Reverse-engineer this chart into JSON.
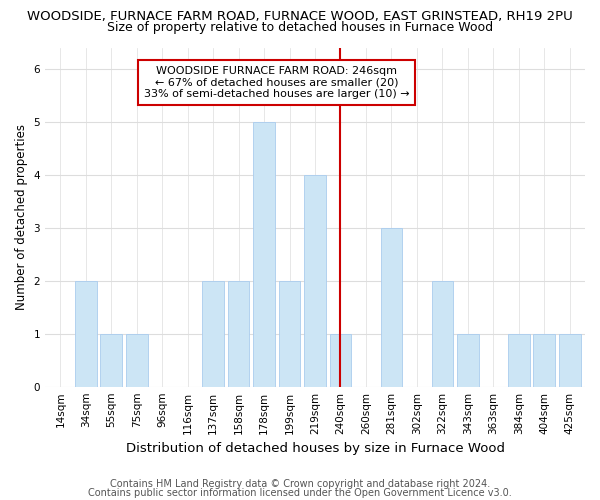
{
  "title": "WOODSIDE, FURNACE FARM ROAD, FURNACE WOOD, EAST GRINSTEAD, RH19 2PU",
  "subtitle": "Size of property relative to detached houses in Furnace Wood",
  "xlabel": "Distribution of detached houses by size in Furnace Wood",
  "ylabel": "Number of detached properties",
  "footnote1": "Contains HM Land Registry data © Crown copyright and database right 2024.",
  "footnote2": "Contains public sector information licensed under the Open Government Licence v3.0.",
  "categories": [
    "14sqm",
    "34sqm",
    "55sqm",
    "75sqm",
    "96sqm",
    "116sqm",
    "137sqm",
    "158sqm",
    "178sqm",
    "199sqm",
    "219sqm",
    "240sqm",
    "260sqm",
    "281sqm",
    "302sqm",
    "322sqm",
    "343sqm",
    "363sqm",
    "384sqm",
    "404sqm",
    "425sqm"
  ],
  "values": [
    0,
    2,
    1,
    1,
    0,
    0,
    2,
    2,
    5,
    2,
    4,
    1,
    0,
    3,
    0,
    2,
    1,
    0,
    1,
    1,
    1
  ],
  "bar_color": "#cce5f5",
  "bar_edge_color": "#aaccee",
  "highlight_index": 11,
  "highlight_line_color": "#cc0000",
  "annotation_line1": "WOODSIDE FURNACE FARM ROAD: 246sqm",
  "annotation_line2": "← 67% of detached houses are smaller (20)",
  "annotation_line3": "33% of semi-detached houses are larger (10) →",
  "annotation_box_color": "#cc0000",
  "annotation_fill_color": "#ffffff",
  "ylim": [
    0,
    6.4
  ],
  "yticks": [
    0,
    1,
    2,
    3,
    4,
    5,
    6
  ],
  "title_fontsize": 9.5,
  "subtitle_fontsize": 9,
  "xlabel_fontsize": 9.5,
  "ylabel_fontsize": 8.5,
  "annot_fontsize": 8,
  "tick_fontsize": 7.5,
  "footnote_fontsize": 7,
  "bg_color": "#ffffff"
}
